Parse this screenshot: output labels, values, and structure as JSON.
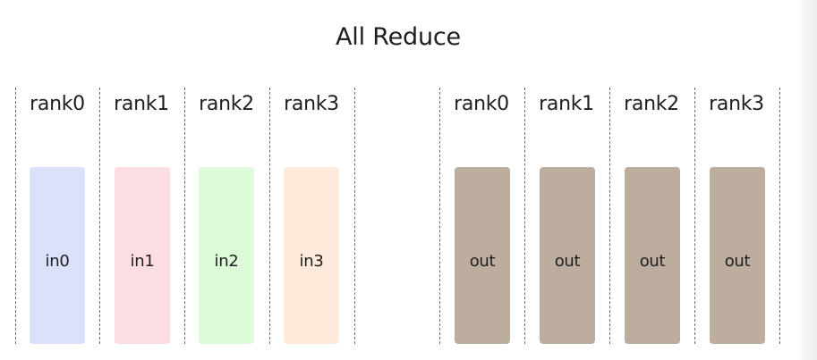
{
  "title": "All Reduce",
  "input_group": {
    "ranks": [
      {
        "label": "rank0",
        "buffer": "in0",
        "color": "#dbe1fb"
      },
      {
        "label": "rank1",
        "buffer": "in1",
        "color": "#fcdde1"
      },
      {
        "label": "rank2",
        "buffer": "in2",
        "color": "#defbd9"
      },
      {
        "label": "rank3",
        "buffer": "in3",
        "color": "#fdeadb"
      }
    ]
  },
  "output_group": {
    "ranks": [
      {
        "label": "rank0",
        "buffer": "out",
        "color": "#bcad9e"
      },
      {
        "label": "rank1",
        "buffer": "out",
        "color": "#bcad9e"
      },
      {
        "label": "rank2",
        "buffer": "out",
        "color": "#bcad9e"
      },
      {
        "label": "rank3",
        "buffer": "out",
        "color": "#bcad9e"
      }
    ]
  }
}
